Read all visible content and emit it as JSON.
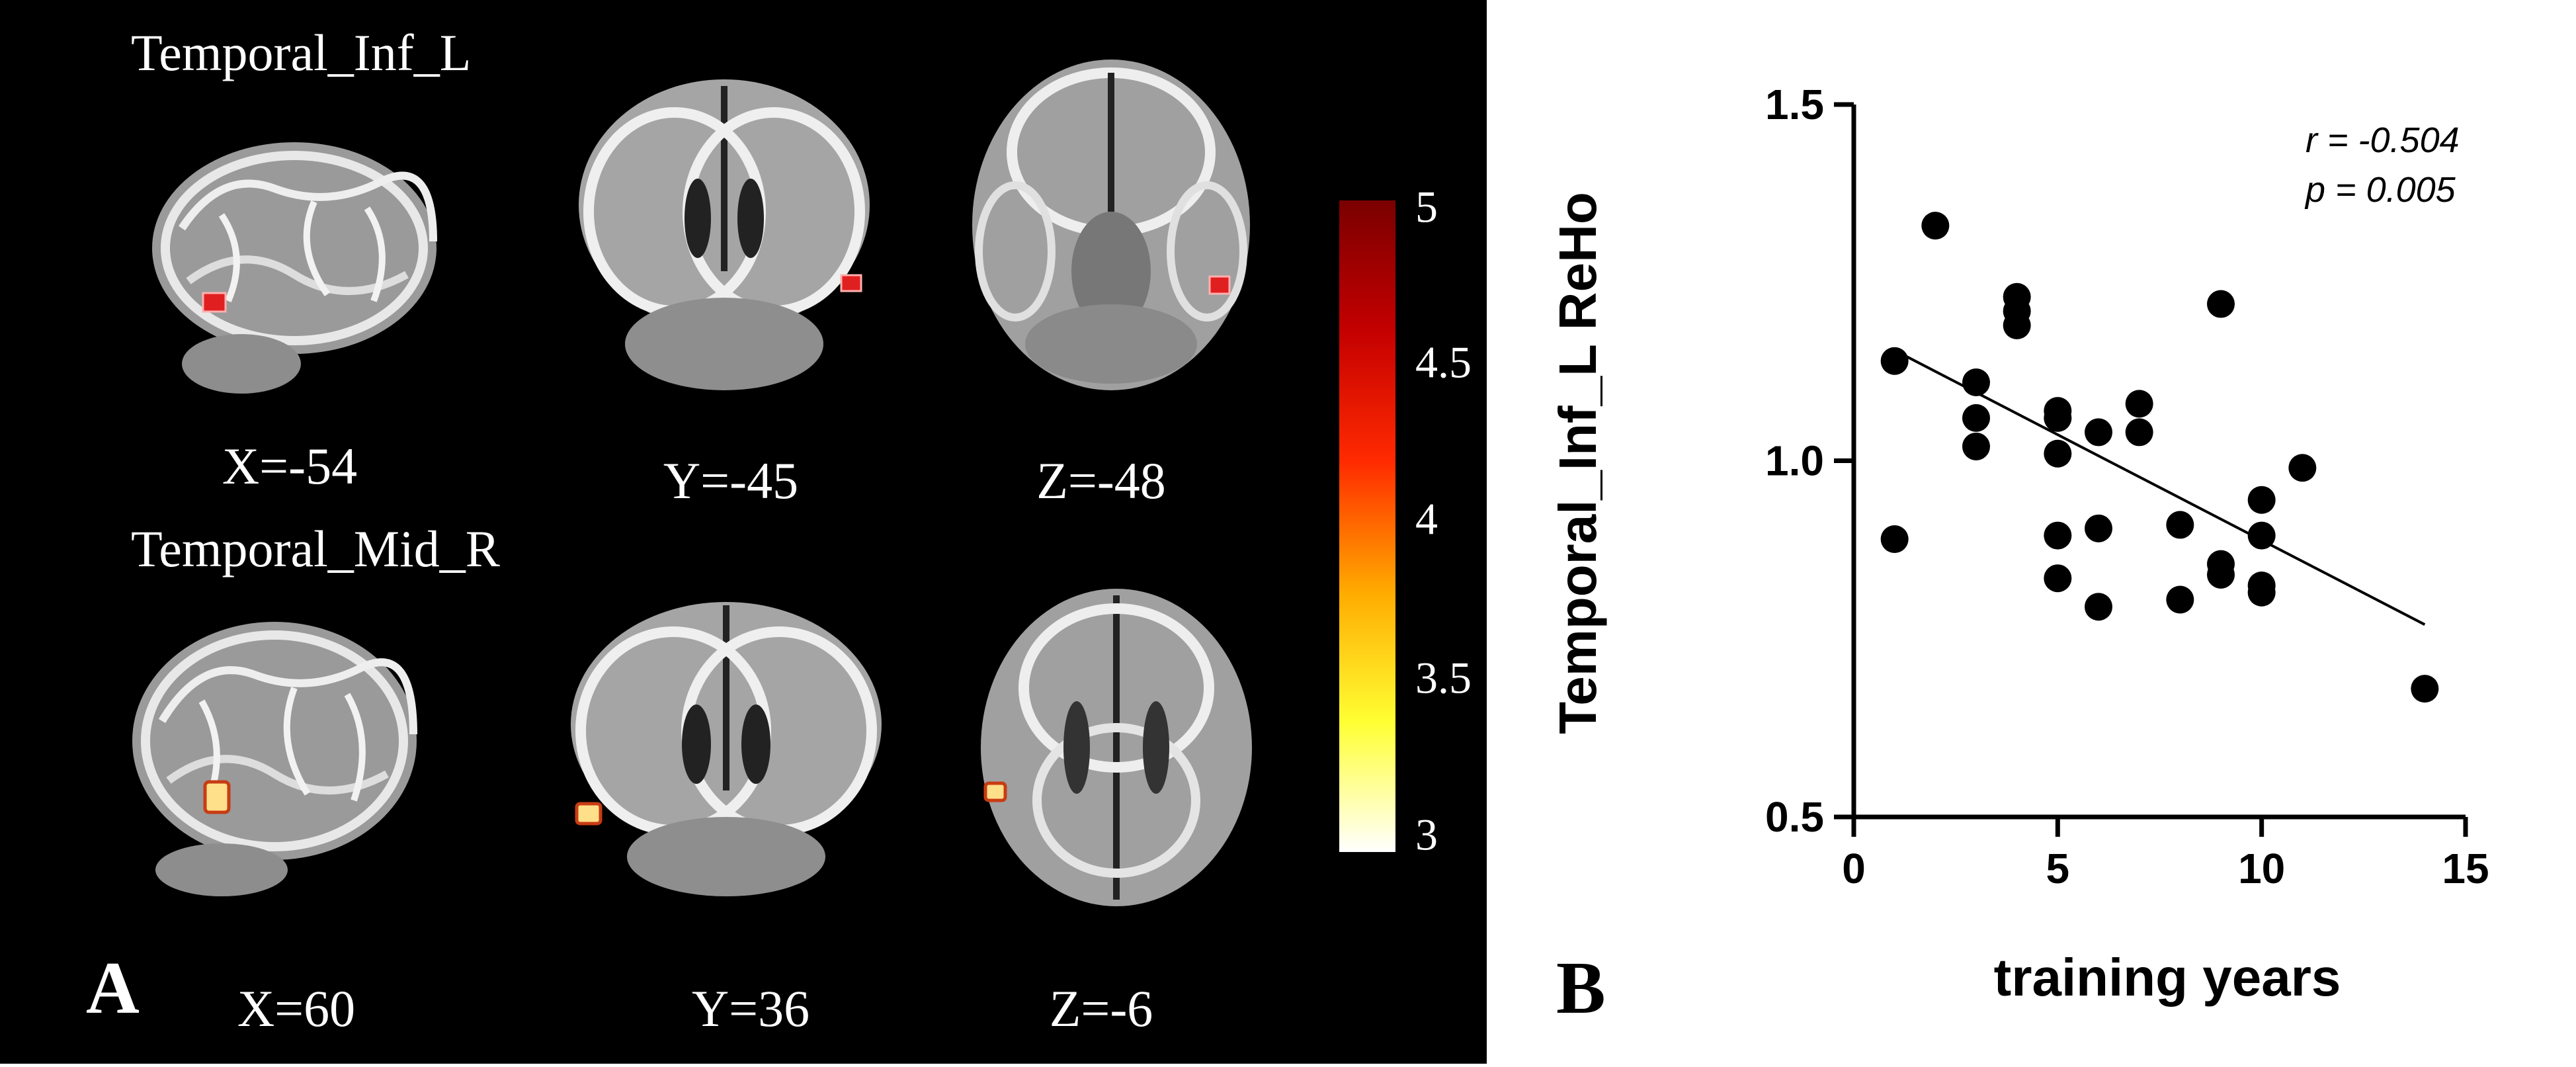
{
  "panel_a": {
    "letter": "A",
    "rows": [
      {
        "region": "Temporal_Inf_L",
        "views": [
          {
            "coord": "X=-54",
            "view": "sagittal"
          },
          {
            "coord": "Y=-45",
            "view": "coronal"
          },
          {
            "coord": "Z=-48",
            "view": "axial"
          }
        ]
      },
      {
        "region": "Temporal_Mid_R",
        "views": [
          {
            "coord": "X=60",
            "view": "sagittal"
          },
          {
            "coord": "Y=36",
            "view": "coronal"
          },
          {
            "coord": "Z=-6",
            "view": "axial"
          }
        ]
      }
    ],
    "colorbar": {
      "ticks": [
        "5",
        "4.5",
        "4",
        "3.5",
        "3"
      ],
      "min": 3,
      "max": 5,
      "colors": [
        "#ffffff",
        "#ffff33",
        "#ffaa00",
        "#ff2a00",
        "#c40000",
        "#7a0000"
      ]
    }
  },
  "panel_b": {
    "letter": "B",
    "stats": {
      "r": "r = -0.504",
      "p": "p = 0.005"
    }
  },
  "chart_data": {
    "type": "scatter",
    "title": "",
    "xlabel": "training years",
    "ylabel": "Temporal_Inf_L ReHo",
    "xlim": [
      0,
      15
    ],
    "ylim": [
      0.5,
      1.5
    ],
    "xticks": [
      0,
      5,
      10,
      15
    ],
    "yticks": [
      0.5,
      1.0,
      1.5
    ],
    "xtick_labels": [
      "0",
      "5",
      "10",
      "15"
    ],
    "ytick_labels": [
      "0.5",
      "1.0",
      "1.5"
    ],
    "grid": false,
    "points": [
      {
        "x": 1,
        "y": 1.14
      },
      {
        "x": 1,
        "y": 0.89
      },
      {
        "x": 2,
        "y": 1.33
      },
      {
        "x": 3,
        "y": 1.11
      },
      {
        "x": 3,
        "y": 1.06
      },
      {
        "x": 3,
        "y": 1.02
      },
      {
        "x": 4,
        "y": 1.23
      },
      {
        "x": 4,
        "y": 1.21
      },
      {
        "x": 4,
        "y": 1.19
      },
      {
        "x": 5,
        "y": 1.07
      },
      {
        "x": 5,
        "y": 1.06
      },
      {
        "x": 5,
        "y": 1.01
      },
      {
        "x": 5,
        "y": 0.895
      },
      {
        "x": 5,
        "y": 0.835
      },
      {
        "x": 6,
        "y": 1.04
      },
      {
        "x": 6,
        "y": 0.905
      },
      {
        "x": 6,
        "y": 0.795
      },
      {
        "x": 7,
        "y": 1.08
      },
      {
        "x": 7,
        "y": 1.04
      },
      {
        "x": 8,
        "y": 0.91
      },
      {
        "x": 8,
        "y": 0.805
      },
      {
        "x": 9,
        "y": 1.22
      },
      {
        "x": 9,
        "y": 0.855
      },
      {
        "x": 9,
        "y": 0.84
      },
      {
        "x": 10,
        "y": 0.945
      },
      {
        "x": 10,
        "y": 0.895
      },
      {
        "x": 10,
        "y": 0.825
      },
      {
        "x": 10,
        "y": 0.815
      },
      {
        "x": 11,
        "y": 0.99
      },
      {
        "x": 14,
        "y": 0.68
      }
    ],
    "fit_line": {
      "x": [
        1,
        14
      ],
      "y": [
        1.155,
        0.77
      ]
    }
  }
}
